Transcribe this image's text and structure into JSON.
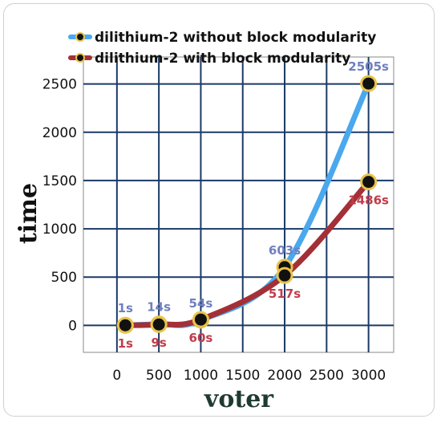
{
  "chart_data": {
    "type": "line",
    "xlabel": "voter",
    "ylabel": "time",
    "xlim": [
      -400,
      3300
    ],
    "ylim": [
      -280,
      2780
    ],
    "x_ticks": [
      0,
      500,
      1000,
      1500,
      2000,
      2500,
      3000
    ],
    "y_ticks": [
      0,
      500,
      1000,
      1500,
      2000,
      2500
    ],
    "x_tick_labels": [
      "0",
      "500",
      "1000",
      "1500",
      "2000",
      "2500",
      "3000"
    ],
    "y_tick_labels": [
      "0",
      "500",
      "1000",
      "1500",
      "2000",
      "2500"
    ],
    "grid": true,
    "legend_position": "top",
    "series": [
      {
        "name": "dilithium-2 without block modularity",
        "color": "#4aa8ee",
        "label_color": "#6f7fbf",
        "x": [
          100,
          500,
          1000,
          2000,
          3000
        ],
        "y": [
          1,
          14,
          54,
          603,
          2505
        ],
        "labels": [
          "1s",
          "14s",
          "54s",
          "603s",
          "2505s"
        ]
      },
      {
        "name": "dilithium-2 with block modularity",
        "color": "#a33036",
        "label_color": "#c23b4a",
        "x": [
          100,
          500,
          1000,
          2000,
          3000
        ],
        "y": [
          1,
          9,
          60,
          517,
          1486
        ],
        "labels": [
          "1s",
          "9s",
          "60s",
          "517s",
          "1486s"
        ]
      }
    ]
  }
}
